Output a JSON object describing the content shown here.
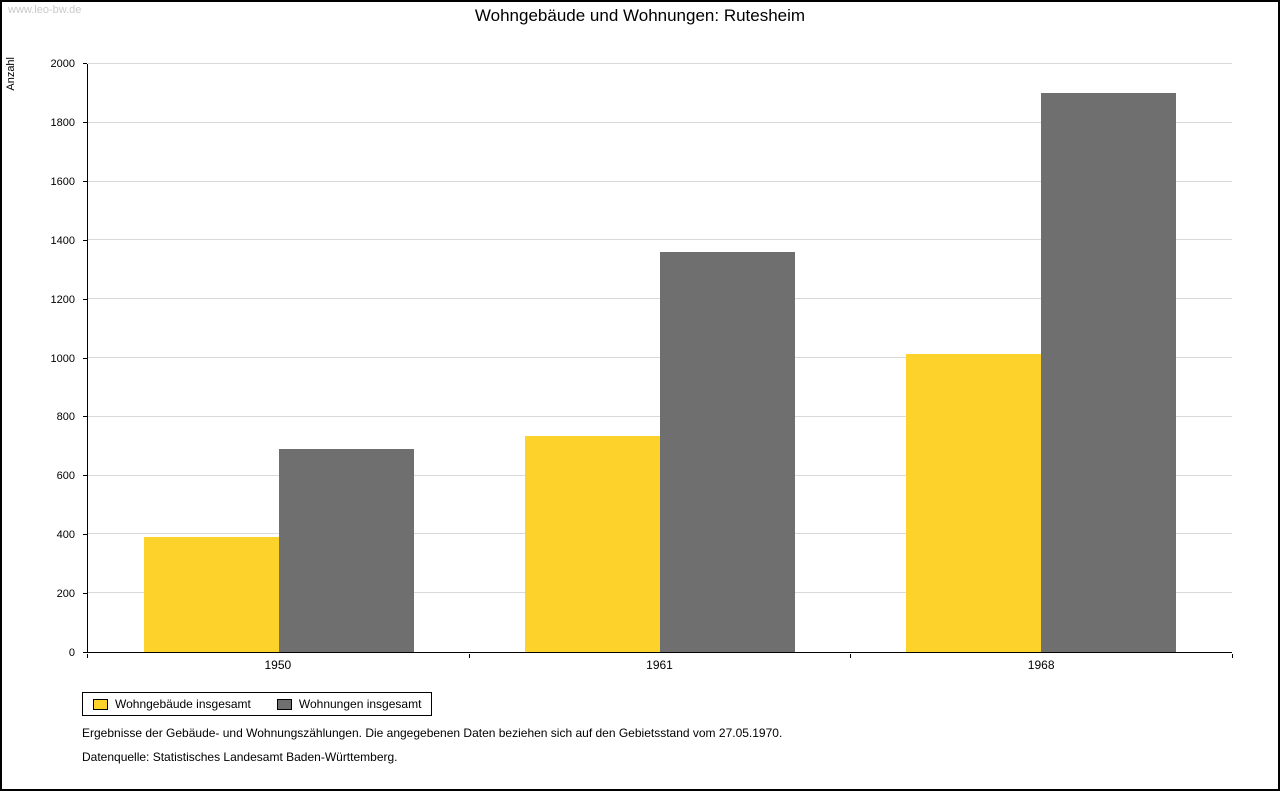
{
  "watermark": "www.leo-bw.de",
  "title": "Wohngebäude und Wohnungen: Rutesheim",
  "chart_data": {
    "type": "bar",
    "title": "Wohngebäude und Wohnungen: Rutesheim",
    "xlabel": "",
    "ylabel": "Anzahl",
    "categories": [
      "1950",
      "1961",
      "1968"
    ],
    "series": [
      {
        "name": "Wohngebäude insgesamt",
        "color": "#fcd22b",
        "values": [
          390,
          735,
          1015
        ]
      },
      {
        "name": "Wohnungen insgesamt",
        "color": "#6f6f6f",
        "values": [
          690,
          1360,
          1900
        ]
      }
    ],
    "ylim": [
      0,
      2000
    ],
    "ytick_step": 200,
    "grid": true,
    "legend_position": "bottom-left"
  },
  "footnotes": {
    "line1": "Ergebnisse der Gebäude- und Wohnungszählungen. Die angegebenen Daten beziehen sich auf den Gebietsstand vom 27.05.1970.",
    "line2": "Datenquelle: Statistisches Landesamt Baden-Württemberg."
  }
}
